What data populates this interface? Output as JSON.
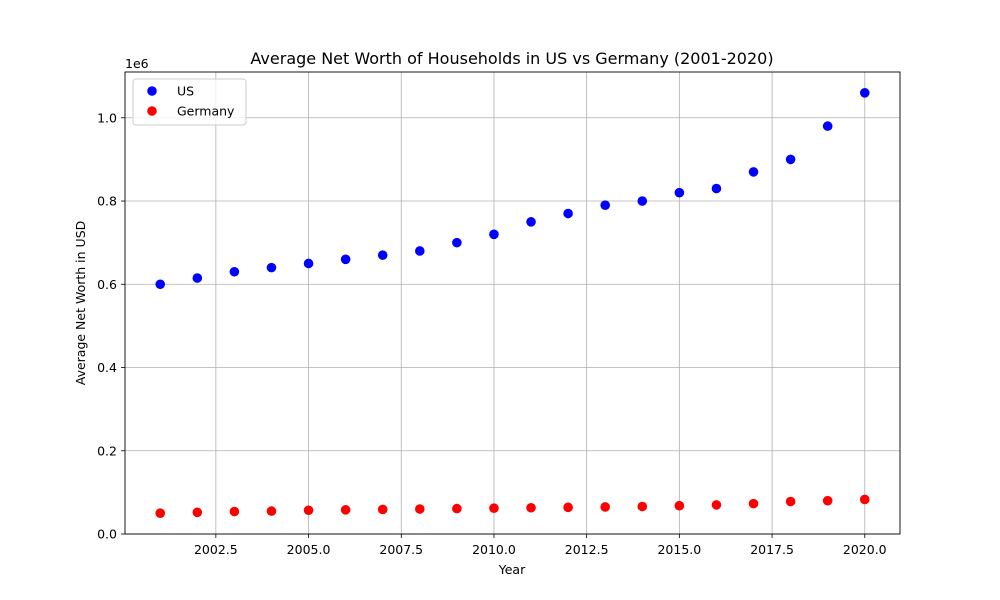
{
  "chart_data": {
    "type": "scatter",
    "title": "Average Net Worth of Households in US vs Germany (2001-2020)",
    "xlabel": "Year",
    "ylabel": "Average Net Worth in USD",
    "y_offset_label": "1e6",
    "y_scale_factor": 1000000,
    "xlim": [
      2000.05,
      2020.95
    ],
    "ylim": [
      0,
      1110000
    ],
    "x_ticks": [
      2002.5,
      2005.0,
      2007.5,
      2010.0,
      2012.5,
      2015.0,
      2017.5,
      2020.0
    ],
    "x_tick_labels": [
      "2002.5",
      "2005.0",
      "2007.5",
      "2010.0",
      "2012.5",
      "2015.0",
      "2017.5",
      "2020.0"
    ],
    "y_ticks": [
      0,
      200000,
      400000,
      600000,
      800000,
      1000000
    ],
    "y_tick_labels": [
      "0.0",
      "0.2",
      "0.4",
      "0.6",
      "0.8",
      "1.0"
    ],
    "grid": true,
    "legend_position": "top-left",
    "x": [
      2001,
      2002,
      2003,
      2004,
      2005,
      2006,
      2007,
      2008,
      2009,
      2010,
      2011,
      2012,
      2013,
      2014,
      2015,
      2016,
      2017,
      2018,
      2019,
      2020
    ],
    "series": [
      {
        "name": "US",
        "color": "#0000ff",
        "values": [
          600000,
          615000,
          630000,
          640000,
          650000,
          660000,
          670000,
          680000,
          700000,
          720000,
          750000,
          770000,
          790000,
          800000,
          820000,
          830000,
          870000,
          900000,
          980000,
          1060000
        ]
      },
      {
        "name": "Germany",
        "color": "#ff0000",
        "values": [
          50000,
          52000,
          54000,
          55000,
          57000,
          58000,
          59000,
          60000,
          61000,
          62000,
          63000,
          64000,
          65000,
          66000,
          68000,
          70000,
          73000,
          78000,
          80000,
          83000
        ]
      }
    ]
  }
}
